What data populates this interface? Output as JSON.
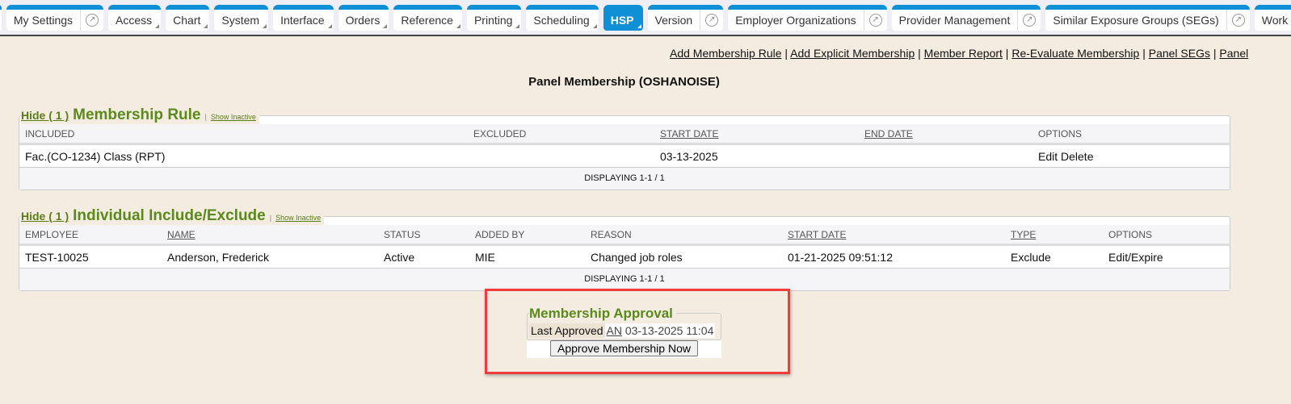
{
  "tabs": [
    {
      "label": "My Settings",
      "ext": true
    },
    {
      "label": "Access",
      "dd": true
    },
    {
      "label": "Chart",
      "dd": true
    },
    {
      "label": "System",
      "dd": true
    },
    {
      "label": "Interface",
      "dd": true
    },
    {
      "label": "Orders",
      "dd": true
    },
    {
      "label": "Reference",
      "dd": true
    },
    {
      "label": "Printing",
      "dd": true
    },
    {
      "label": "Scheduling",
      "dd": true
    },
    {
      "label": "HSP",
      "dd": true,
      "active": true
    },
    {
      "label": "Version",
      "ext": true
    },
    {
      "label": "Employer Organizations",
      "ext": true
    },
    {
      "label": "Provider Management",
      "ext": true
    },
    {
      "label": "Similar Exposure Groups (SEGs)",
      "ext": true
    },
    {
      "label": "Work Locations",
      "ext": true
    }
  ],
  "links": [
    "Add Membership Rule",
    "Add Explicit Membership",
    "Member Report",
    "Re-Evaluate Membership",
    "Panel SEGs",
    "Panel"
  ],
  "page_title": "Panel Membership (OSHANOISE)",
  "rule": {
    "hide": "Hide ( 1 )",
    "heading": "Membership Rule",
    "show_inactive": "Show Inactive",
    "columns": [
      "INCLUDED",
      "EXCLUDED",
      "START DATE",
      "END DATE",
      "OPTIONS"
    ],
    "row": [
      "Fac.(CO-1234) Class (RPT)",
      "",
      "03-13-2025",
      "",
      "Edit Delete"
    ],
    "footer": "DISPLAYING 1-1 / 1"
  },
  "individual": {
    "hide": "Hide ( 1 )",
    "heading": "Individual Include/Exclude",
    "show_inactive": "Show Inactive",
    "columns": [
      "EMPLOYEE",
      "NAME",
      "STATUS",
      "ADDED BY",
      "REASON",
      "START DATE",
      "TYPE",
      "OPTIONS"
    ],
    "row": [
      "TEST-10025",
      "Anderson, Frederick",
      "Active",
      "MIE",
      "Changed job roles",
      "01-21-2025 09:51:12",
      "Exclude",
      "Edit/Expire"
    ],
    "footer": "DISPLAYING 1-1 / 1"
  },
  "approval": {
    "heading": "Membership Approval",
    "last_label": "Last Approved",
    "by": "AN",
    "date": "03-13-2025 11:04",
    "button": "Approve Membership Now"
  },
  "colors": {
    "tab_blue": "#0f8fd6",
    "heading_green": "#5a8a1c",
    "highlight": "#ee3b3b"
  }
}
